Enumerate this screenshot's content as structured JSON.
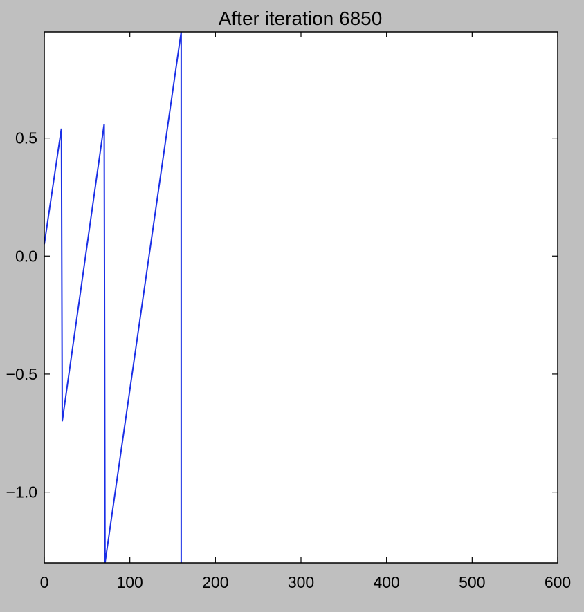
{
  "chart_data": {
    "type": "line",
    "title": "After iteration 6850",
    "xlabel": "",
    "ylabel": "",
    "xlim": [
      0,
      600
    ],
    "ylim": [
      -1.3,
      0.95
    ],
    "x_ticks": [
      0,
      100,
      200,
      300,
      400,
      500,
      600
    ],
    "x_tick_labels": [
      "0",
      "100",
      "200",
      "300",
      "400",
      "500",
      "600"
    ],
    "y_ticks": [
      0.5,
      0.0,
      -0.5,
      -1.0
    ],
    "y_tick_labels": [
      "0.5",
      "0.0",
      "−0.5",
      "−1.0"
    ],
    "grid": false,
    "legend": "none",
    "series": [
      {
        "color": "#1a2fe6",
        "x": [
          0,
          20,
          21,
          70,
          71,
          160,
          160
        ],
        "y": [
          0.05,
          0.54,
          -0.7,
          0.56,
          -1.3,
          0.95,
          -1.3
        ]
      }
    ]
  }
}
